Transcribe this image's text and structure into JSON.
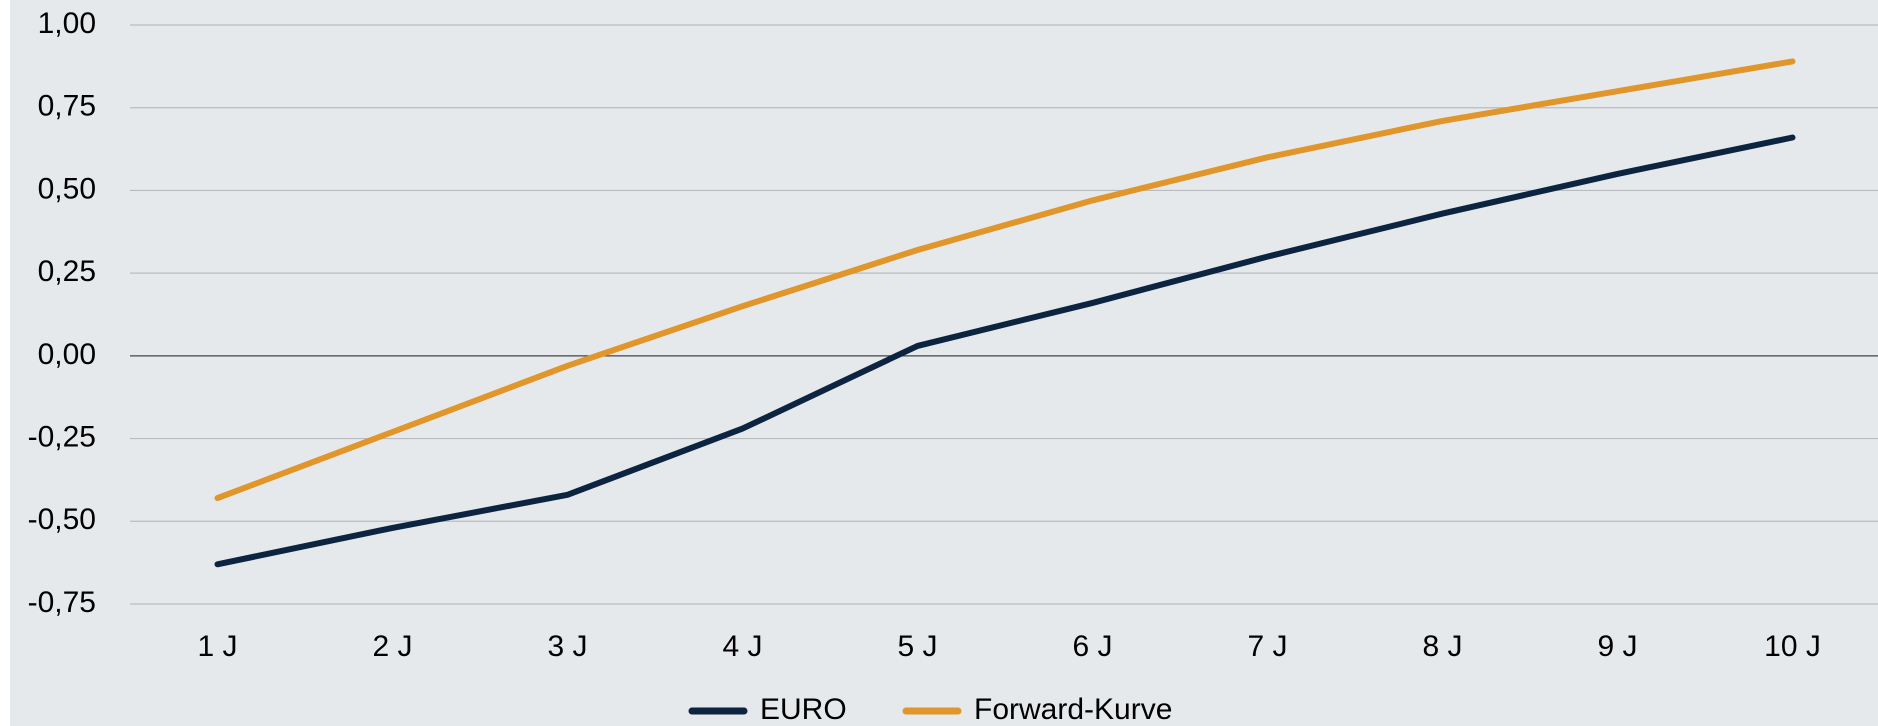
{
  "chart_data": {
    "type": "line",
    "categories": [
      "1 J",
      "2 J",
      "3 J",
      "4 J",
      "5 J",
      "6 J",
      "7 J",
      "8 J",
      "9 J",
      "10 J"
    ],
    "series": [
      {
        "name": "EURO",
        "color": "#0d2440",
        "values": [
          -0.63,
          -0.52,
          -0.42,
          -0.22,
          0.03,
          0.16,
          0.3,
          0.43,
          0.55,
          0.66
        ]
      },
      {
        "name": "Forward-Kurve",
        "color": "#e0962a",
        "values": [
          -0.43,
          -0.23,
          -0.03,
          0.15,
          0.32,
          0.47,
          0.6,
          0.71,
          0.8,
          0.89
        ]
      }
    ],
    "ylim": [
      -0.75,
      1.0
    ],
    "yticks": [
      {
        "value": 1.0,
        "label": "1,00"
      },
      {
        "value": 0.75,
        "label": "0,75"
      },
      {
        "value": 0.5,
        "label": "0,50"
      },
      {
        "value": 0.25,
        "label": "0,25"
      },
      {
        "value": 0,
        "label": "0,00"
      },
      {
        "value": -0.25,
        "label": "-0,25"
      },
      {
        "value": -0.5,
        "label": "-0,50"
      },
      {
        "value": -0.75,
        "label": "-0,75"
      }
    ],
    "grid": true
  }
}
